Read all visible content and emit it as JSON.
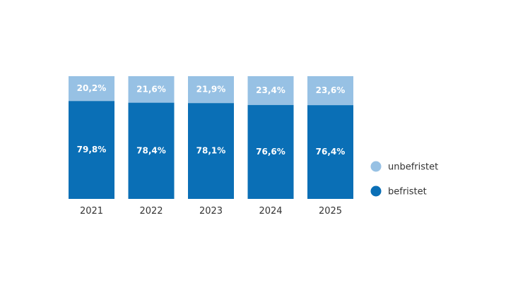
{
  "chart_data": {
    "type": "bar",
    "stacked": true,
    "categories": [
      "2021",
      "2022",
      "2023",
      "2024",
      "2025"
    ],
    "series": [
      {
        "name": "befristet",
        "values": [
          79.8,
          78.4,
          78.1,
          76.6,
          76.4
        ],
        "labels": [
          "79,8%",
          "78,4%",
          "78,1%",
          "76,6%",
          "76,4%"
        ],
        "color": "#0a6fb6"
      },
      {
        "name": "unbefristet",
        "values": [
          20.2,
          21.6,
          21.9,
          23.4,
          23.6
        ],
        "labels": [
          "20,2%",
          "21,6%",
          "21,9%",
          "23,4%",
          "23,6%"
        ],
        "color": "#97c1e4"
      }
    ],
    "ylim": [
      0,
      100
    ],
    "legend": {
      "position": "right",
      "entries": [
        "unbefristet",
        "befristet"
      ]
    },
    "grid": false
  }
}
